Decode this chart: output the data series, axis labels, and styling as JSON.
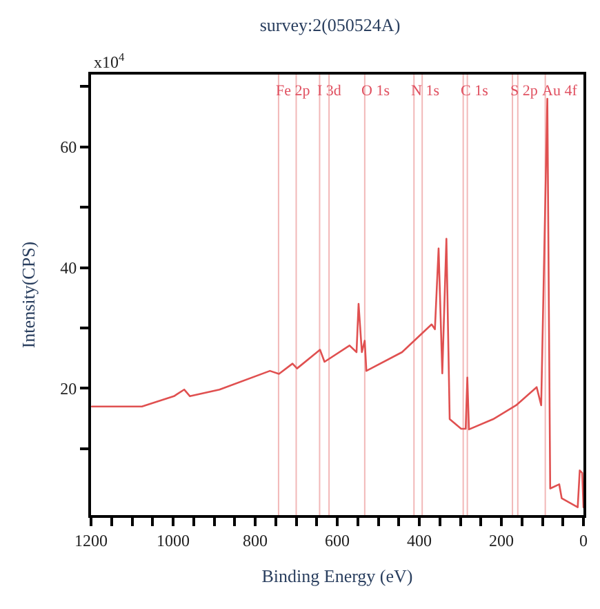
{
  "chart_data": {
    "type": "line",
    "title": "survey:2(050524A)",
    "xlabel": "Binding Energy (eV)",
    "ylabel": "Intensity(CPS)",
    "annotations": [
      "x10$^{4}$"
    ],
    "x": [
      1198,
      1076,
      998,
      973,
      959,
      887,
      764,
      742,
      709,
      698,
      642,
      631,
      570,
      553,
      548,
      540,
      533,
      529,
      442,
      370,
      362,
      353,
      344,
      334,
      326,
      298,
      287,
      283,
      279,
      220,
      164,
      114,
      103,
      88,
      81,
      59,
      53,
      14,
      9,
      3,
      0
    ],
    "series": [
      {
        "color": "#e05050",
        "values": [
          17.0,
          17.0,
          18.7,
          19.8,
          18.7,
          19.8,
          22.9,
          22.4,
          24.1,
          23.3,
          26.4,
          24.4,
          27.1,
          26.0,
          34.0,
          26.0,
          27.9,
          22.9,
          26.0,
          30.6,
          29.8,
          43.2,
          22.5,
          44.8,
          14.9,
          13.3,
          13.3,
          21.8,
          13.2,
          14.9,
          17.2,
          20.2,
          17.2,
          68,
          3.4,
          4.1,
          1.8,
          0.3,
          6.4,
          6.0,
          0.3
        ]
      }
    ],
    "xlim": [
      1200,
      0
    ],
    "xticks": [
      1200,
      {
        "value": 1150,
        "label": null
      },
      {
        "value": 1100,
        "label": null
      },
      {
        "value": 1050,
        "label": null
      },
      1000,
      {
        "value": 950,
        "label": null
      },
      {
        "value": 900,
        "label": null
      },
      {
        "value": 850,
        "label": null
      },
      800,
      {
        "value": 750,
        "label": null
      },
      {
        "value": 700,
        "label": null
      },
      {
        "value": 650,
        "label": null
      },
      600,
      {
        "value": 550,
        "label": null
      },
      {
        "value": 500,
        "label": null
      },
      {
        "value": 450,
        "label": null
      },
      400,
      {
        "value": 350,
        "label": null
      },
      {
        "value": 300,
        "label": null
      },
      {
        "value": 250,
        "label": null
      },
      200,
      {
        "value": 150,
        "label": null
      },
      {
        "value": 100,
        "label": null
      },
      {
        "value": 50,
        "label": null
      },
      0
    ],
    "ylim": [
      -1,
      72
    ],
    "yticks": [
      {
        "value": 10,
        "label": null
      },
      20,
      {
        "value": 30,
        "label": null
      },
      40,
      {
        "value": 50,
        "label": null
      },
      60,
      {
        "value": 70,
        "label": null
      }
    ],
    "ref_lines": [
      {
        "axis": "x",
        "value": 743,
        "label": "Fe 2p",
        "color": "#f2b8b8"
      },
      {
        "axis": "x",
        "value": 700,
        "label": null,
        "color": "#f2b8b8"
      },
      {
        "axis": "x",
        "value": 643,
        "label": "I 3d",
        "color": "#f2b8b8"
      },
      {
        "axis": "x",
        "value": 620,
        "label": null,
        "color": "#f2b8b8"
      },
      {
        "axis": "x",
        "value": 533,
        "label": "O 1s",
        "color": "#f2b8b8"
      },
      {
        "axis": "x",
        "value": 413,
        "label": "N 1s",
        "color": "#f2b8b8"
      },
      {
        "axis": "x",
        "value": 393,
        "label": null,
        "color": "#f2b8b8"
      },
      {
        "axis": "x",
        "value": 293,
        "label": "C 1s",
        "color": "#f2b8b8"
      },
      {
        "axis": "x",
        "value": 283,
        "label": null,
        "color": "#f2b8b8"
      },
      {
        "axis": "x",
        "value": 173,
        "label": "S 2p",
        "color": "#f2b8b8"
      },
      {
        "axis": "x",
        "value": 160,
        "label": null,
        "color": "#f2b8b8"
      },
      {
        "axis": "x",
        "value": 93,
        "label": "Au 4f",
        "color": "#f2b8b8"
      }
    ],
    "grid": false,
    "marker": "none",
    "line_style": "solid"
  }
}
